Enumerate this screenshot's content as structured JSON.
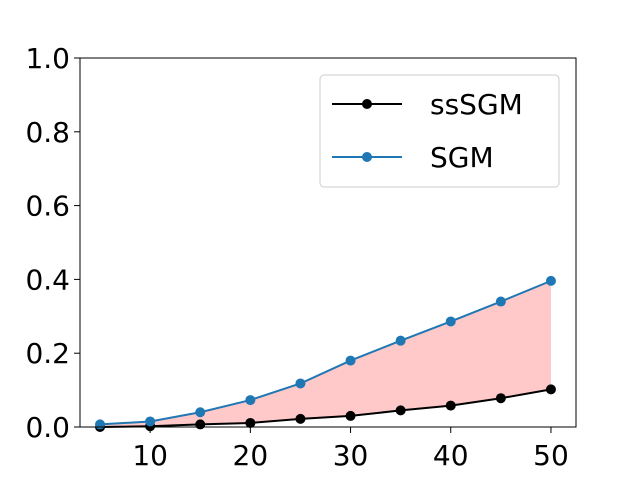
{
  "chart_data": {
    "type": "line",
    "title": "",
    "xlabel": "",
    "ylabel": "",
    "x": [
      5,
      10,
      15,
      20,
      25,
      30,
      35,
      40,
      45,
      50
    ],
    "xlim": [
      3,
      52.5
    ],
    "ylim": [
      0,
      1.0
    ],
    "xticks": [
      10,
      20,
      30,
      40,
      50
    ],
    "xtick_labels": [
      "10",
      "20",
      "30",
      "40",
      "50"
    ],
    "yticks": [
      0.0,
      0.2,
      0.4,
      0.6,
      0.8,
      1.0
    ],
    "ytick_labels": [
      "0.0",
      "0.2",
      "0.4",
      "0.6",
      "0.8",
      "1.0"
    ],
    "grid": false,
    "legend_position": "top-right",
    "fill_between": {
      "lower": "ssSGM",
      "upper": "SGM",
      "color": "#ffc9c9"
    },
    "series": [
      {
        "name": "ssSGM",
        "color": "#000000",
        "values": [
          0.0,
          0.002,
          0.007,
          0.011,
          0.022,
          0.03,
          0.045,
          0.058,
          0.078,
          0.102
        ]
      },
      {
        "name": "SGM",
        "color": "#1f77b4",
        "values": [
          0.007,
          0.015,
          0.04,
          0.073,
          0.118,
          0.18,
          0.234,
          0.286,
          0.34,
          0.396
        ]
      }
    ]
  }
}
